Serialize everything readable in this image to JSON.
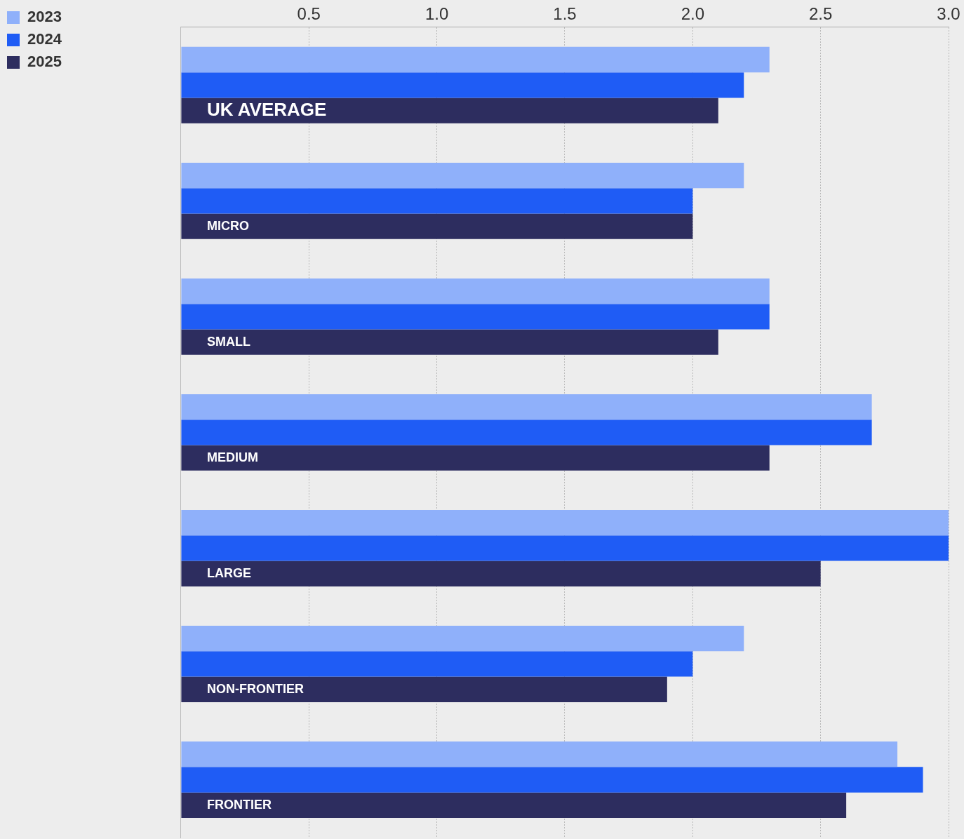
{
  "chart_data": {
    "type": "bar",
    "orientation": "horizontal",
    "categories": [
      "UK AVERAGE",
      "MICRO",
      "SMALL",
      "MEDIUM",
      "LARGE",
      "NON-FRONTIER",
      "FRONTIER"
    ],
    "series": [
      {
        "name": "2023",
        "color": "#8fb0fa",
        "values": [
          2.3,
          2.2,
          2.3,
          2.7,
          3.0,
          2.2,
          2.8
        ]
      },
      {
        "name": "2024",
        "color": "#1f5cf5",
        "values": [
          2.2,
          2.0,
          2.3,
          2.7,
          3.0,
          2.0,
          2.9
        ]
      },
      {
        "name": "2025",
        "color": "#2d2d5f",
        "values": [
          2.1,
          2.0,
          2.1,
          2.3,
          2.5,
          1.9,
          2.6
        ]
      }
    ],
    "xlim": [
      0,
      3
    ],
    "xticks": [
      {
        "value": 0,
        "label": null
      },
      0.5,
      {
        "value": 1,
        "label": "1.0"
      },
      1.5,
      {
        "value": 2,
        "label": "2.0"
      },
      2.5,
      {
        "value": 3,
        "label": "3.0"
      }
    ],
    "grid": "x",
    "legend": "top left"
  }
}
